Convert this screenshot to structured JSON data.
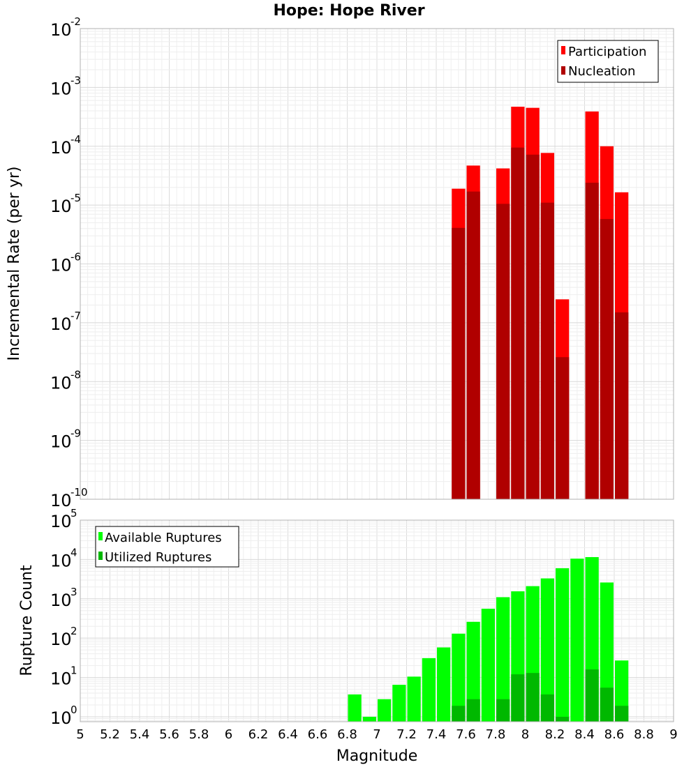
{
  "chart_data": [
    {
      "type": "bar",
      "title": "Hope: Hope River",
      "xlabel": "Magnitude",
      "ylabel": "Incremental Rate (per yr)",
      "yscale": "log",
      "xlim": [
        5,
        9
      ],
      "ylim": [
        1e-10,
        0.01
      ],
      "grid": true,
      "legend_position": "top-right",
      "bar_width": 0.1,
      "x": [
        7.55,
        7.65,
        7.85,
        7.95,
        8.05,
        8.15,
        8.25,
        8.45,
        8.55,
        8.65
      ],
      "series": [
        {
          "name": "Participation",
          "color": "#ff0000",
          "values": [
            1.9e-05,
            4.7e-05,
            4.2e-05,
            0.00047,
            0.00045,
            7.7e-05,
            2.5e-07,
            0.00039,
            0.0001,
            1.65e-05
          ]
        },
        {
          "name": "Nucleation",
          "color": "#b00000",
          "values": [
            4.1e-06,
            1.7e-05,
            1.05e-05,
            9.5e-05,
            7.2e-05,
            1.1e-05,
            2.6e-08,
            2.4e-05,
            5.8e-06,
            1.5e-07
          ]
        }
      ],
      "y_ticks": [
        {
          "base": "10",
          "exp": "-10"
        },
        {
          "base": "10",
          "exp": "-9"
        },
        {
          "base": "10",
          "exp": "-8"
        },
        {
          "base": "10",
          "exp": "-7"
        },
        {
          "base": "10",
          "exp": "-6"
        },
        {
          "base": "10",
          "exp": "-5"
        },
        {
          "base": "10",
          "exp": "-4"
        },
        {
          "base": "10",
          "exp": "-3"
        },
        {
          "base": "10",
          "exp": "-2"
        }
      ]
    },
    {
      "type": "bar",
      "xlabel": "Magnitude",
      "ylabel": "Rupture Count",
      "yscale": "log",
      "xlim": [
        5,
        9
      ],
      "ylim": [
        0.75,
        100000.0
      ],
      "grid": true,
      "legend_position": "top-left",
      "bar_width": 0.1,
      "x": [
        6.85,
        6.95,
        7.05,
        7.15,
        7.25,
        7.35,
        7.45,
        7.55,
        7.65,
        7.75,
        7.85,
        7.95,
        8.05,
        8.15,
        8.25,
        8.35,
        8.45,
        8.55,
        8.65
      ],
      "series": [
        {
          "name": "Available Ruptures",
          "color": "#00ff00",
          "values": [
            3.7,
            1,
            2.8,
            6.5,
            10.5,
            31,
            58,
            130,
            260,
            560,
            1100,
            1550,
            2100,
            3300,
            6000,
            10500,
            11500,
            2600,
            27
          ]
        },
        {
          "name": "Utilized Ruptures",
          "color": "#00b800",
          "values": [
            null,
            null,
            null,
            null,
            null,
            null,
            null,
            1.9,
            2.8,
            null,
            2.8,
            12,
            13,
            3.7,
            1,
            null,
            16,
            5.5,
            1.9
          ]
        }
      ],
      "y_ticks": [
        {
          "base": "10",
          "exp": "0"
        },
        {
          "base": "10",
          "exp": "1"
        },
        {
          "base": "10",
          "exp": "2"
        },
        {
          "base": "10",
          "exp": "3"
        },
        {
          "base": "10",
          "exp": "4"
        },
        {
          "base": "10",
          "exp": "5"
        }
      ]
    }
  ],
  "x_ticks": [
    "5",
    "5.2",
    "5.4",
    "5.6",
    "5.8",
    "6",
    "6.2",
    "6.4",
    "6.6",
    "6.8",
    "7",
    "7.2",
    "7.4",
    "7.6",
    "7.8",
    "8",
    "8.2",
    "8.4",
    "8.6",
    "8.8",
    "9"
  ]
}
